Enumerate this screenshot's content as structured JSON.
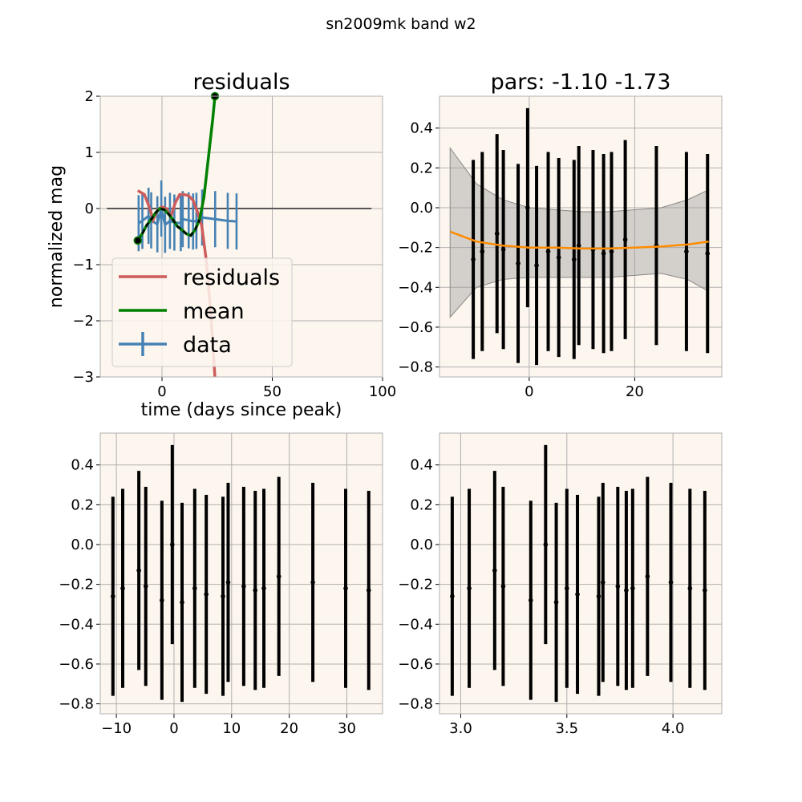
{
  "figure": {
    "suptitle": "sn2009mk band w2"
  },
  "colors": {
    "panel_bg": "#fdf6ee",
    "grid": "#b0b0b0",
    "residuals": "#cd5c5c",
    "mean": "#008000",
    "data": "#4682b4",
    "fit": "#ff8c00",
    "band": "#a0a0a0",
    "points": "#000000",
    "zero_line": "#555555"
  },
  "chart_data": [
    {
      "type": "line",
      "title": "residuals",
      "xlabel": "time (days since peak)",
      "ylabel": "normalized mag",
      "xlim": [
        -28,
        100
      ],
      "ylim": [
        -3,
        2
      ],
      "xticks": [
        0,
        50,
        100
      ],
      "xtick_labels": [
        "0",
        "50",
        "100"
      ],
      "yticks": [
        -3,
        -2,
        -1,
        0,
        1,
        2
      ],
      "ytick_labels": [
        "−3",
        "−2",
        "−1",
        "0",
        "1",
        "2"
      ],
      "grid": true,
      "legend": {
        "placement": "lower-left",
        "entries": [
          "residuals",
          "mean",
          "data"
        ]
      },
      "series": [
        {
          "name": "residuals",
          "x": [
            -11,
            -8,
            -6,
            -4,
            -2,
            0,
            2,
            4,
            6,
            8,
            10,
            12,
            14,
            16,
            18,
            20,
            22,
            24
          ],
          "y": [
            0.32,
            0.25,
            0.05,
            -0.2,
            -0.02,
            0.03,
            0.0,
            -0.15,
            0.1,
            0.25,
            0.25,
            0.23,
            0.15,
            -0.05,
            -0.3,
            -0.9,
            -1.8,
            -3.0
          ]
        },
        {
          "name": "mean",
          "x": [
            -11,
            -9,
            -7,
            -5,
            -3,
            -1,
            1,
            3,
            5,
            7,
            9,
            11,
            13,
            15,
            17,
            19,
            21,
            23,
            24
          ],
          "y": [
            -0.57,
            -0.45,
            -0.3,
            -0.2,
            -0.08,
            0.0,
            -0.02,
            -0.1,
            -0.2,
            -0.32,
            -0.38,
            -0.45,
            -0.48,
            -0.38,
            -0.2,
            0.2,
            0.9,
            1.6,
            2.0
          ]
        },
        {
          "name": "data",
          "x": [
            -10.6,
            -8.9,
            -6.1,
            -4.9,
            -2.1,
            -0.3,
            1.4,
            3.6,
            5.6,
            8.5,
            9.4,
            12.1,
            14.1,
            15.6,
            18.2,
            24.1,
            29.8,
            33.8
          ],
          "y": [
            -0.26,
            -0.22,
            -0.13,
            -0.21,
            -0.28,
            0.0,
            -0.29,
            -0.22,
            -0.25,
            -0.26,
            -0.19,
            -0.21,
            -0.23,
            -0.22,
            -0.16,
            -0.19,
            -0.22,
            -0.23
          ],
          "yerr": [
            0.5,
            0.5,
            0.5,
            0.5,
            0.5,
            0.5,
            0.5,
            0.5,
            0.5,
            0.5,
            0.5,
            0.5,
            0.5,
            0.5,
            0.5,
            0.5,
            0.5,
            0.5
          ]
        }
      ],
      "mean_markers": {
        "x": [
          -11,
          24
        ],
        "y": [
          -0.57,
          2.0
        ]
      },
      "hline": 0
    },
    {
      "type": "line",
      "title": "pars: -1.10 -1.73",
      "xlim": [
        -17,
        36.5
      ],
      "ylim": [
        -0.85,
        0.56
      ],
      "xticks": [
        0,
        20
      ],
      "xtick_labels": [
        "0",
        "20"
      ],
      "yticks": [
        -0.8,
        -0.6,
        -0.4,
        -0.2,
        0.0,
        0.2,
        0.4
      ],
      "ytick_labels": [
        "−0.8",
        "−0.6",
        "−0.4",
        "−0.2",
        "0.0",
        "0.2",
        "0.4"
      ],
      "grid": true,
      "fit": {
        "x": [
          -15,
          -10,
          -5,
          0,
          5,
          10,
          15,
          20,
          25,
          30,
          34
        ],
        "y": [
          -0.12,
          -0.17,
          -0.19,
          -0.2,
          -0.2,
          -0.205,
          -0.205,
          -0.2,
          -0.195,
          -0.185,
          -0.17
        ],
        "band_upper": [
          0.3,
          0.12,
          0.04,
          0.0,
          -0.01,
          -0.02,
          -0.02,
          -0.01,
          0.0,
          0.04,
          0.09
        ],
        "band_lower": [
          -0.55,
          -0.4,
          -0.36,
          -0.35,
          -0.35,
          -0.35,
          -0.35,
          -0.34,
          -0.33,
          -0.36,
          -0.42
        ]
      },
      "points": {
        "x": [
          -10.6,
          -8.9,
          -6.1,
          -4.9,
          -2.1,
          -0.3,
          1.4,
          3.6,
          5.6,
          8.5,
          9.4,
          12.1,
          14.1,
          15.6,
          18.2,
          24.1,
          29.8,
          33.8
        ],
        "y": [
          -0.26,
          -0.22,
          -0.13,
          -0.21,
          -0.28,
          0.0,
          -0.29,
          -0.22,
          -0.25,
          -0.26,
          -0.19,
          -0.21,
          -0.23,
          -0.22,
          -0.16,
          -0.19,
          -0.22,
          -0.23
        ],
        "yerr": [
          0.5,
          0.5,
          0.5,
          0.5,
          0.5,
          0.5,
          0.5,
          0.5,
          0.5,
          0.5,
          0.5,
          0.5,
          0.5,
          0.5,
          0.5,
          0.5,
          0.5,
          0.5
        ]
      }
    },
    {
      "type": "scatter",
      "title": "",
      "xlim": [
        -12.8,
        36.2
      ],
      "ylim": [
        -0.85,
        0.56
      ],
      "xticks": [
        -10,
        0,
        10,
        20,
        30
      ],
      "xtick_labels": [
        "−10",
        "0",
        "10",
        "20",
        "30"
      ],
      "yticks": [
        -0.8,
        -0.6,
        -0.4,
        -0.2,
        0.0,
        0.2,
        0.4
      ],
      "ytick_labels": [
        "−0.8",
        "−0.6",
        "−0.4",
        "−0.2",
        "0.0",
        "0.2",
        "0.4"
      ],
      "grid": true,
      "points": {
        "x": [
          -10.6,
          -8.9,
          -6.1,
          -4.9,
          -2.1,
          -0.3,
          1.4,
          3.6,
          5.6,
          8.5,
          9.4,
          12.1,
          14.1,
          15.6,
          18.2,
          24.1,
          29.8,
          33.8
        ],
        "y": [
          -0.26,
          -0.22,
          -0.13,
          -0.21,
          -0.28,
          0.0,
          -0.29,
          -0.22,
          -0.25,
          -0.26,
          -0.19,
          -0.21,
          -0.23,
          -0.22,
          -0.16,
          -0.19,
          -0.22,
          -0.23
        ],
        "yerr": [
          0.5,
          0.5,
          0.5,
          0.5,
          0.5,
          0.5,
          0.5,
          0.5,
          0.5,
          0.5,
          0.5,
          0.5,
          0.5,
          0.5,
          0.5,
          0.5,
          0.5,
          0.5
        ]
      }
    },
    {
      "type": "scatter",
      "title": "",
      "xlim": [
        2.9,
        4.23
      ],
      "ylim": [
        -0.85,
        0.56
      ],
      "xticks": [
        3.0,
        3.5,
        4.0
      ],
      "xtick_labels": [
        "3.0",
        "3.5",
        "4.0"
      ],
      "yticks": [
        -0.8,
        -0.6,
        -0.4,
        -0.2,
        0.0,
        0.2,
        0.4
      ],
      "ytick_labels": [
        "−0.8",
        "−0.6",
        "−0.4",
        "−0.2",
        "0.0",
        "0.2",
        "0.4"
      ],
      "grid": true,
      "points": {
        "x": [
          2.96,
          3.04,
          3.16,
          3.2,
          3.33,
          3.4,
          3.45,
          3.5,
          3.55,
          3.65,
          3.67,
          3.74,
          3.78,
          3.81,
          3.88,
          3.99,
          4.08,
          4.15
        ],
        "y": [
          -0.26,
          -0.22,
          -0.13,
          -0.21,
          -0.28,
          0.0,
          -0.29,
          -0.22,
          -0.25,
          -0.26,
          -0.19,
          -0.21,
          -0.23,
          -0.22,
          -0.16,
          -0.19,
          -0.22,
          -0.23
        ],
        "yerr": [
          0.5,
          0.5,
          0.5,
          0.5,
          0.5,
          0.5,
          0.5,
          0.5,
          0.5,
          0.5,
          0.5,
          0.5,
          0.5,
          0.5,
          0.5,
          0.5,
          0.5,
          0.5
        ]
      }
    }
  ]
}
